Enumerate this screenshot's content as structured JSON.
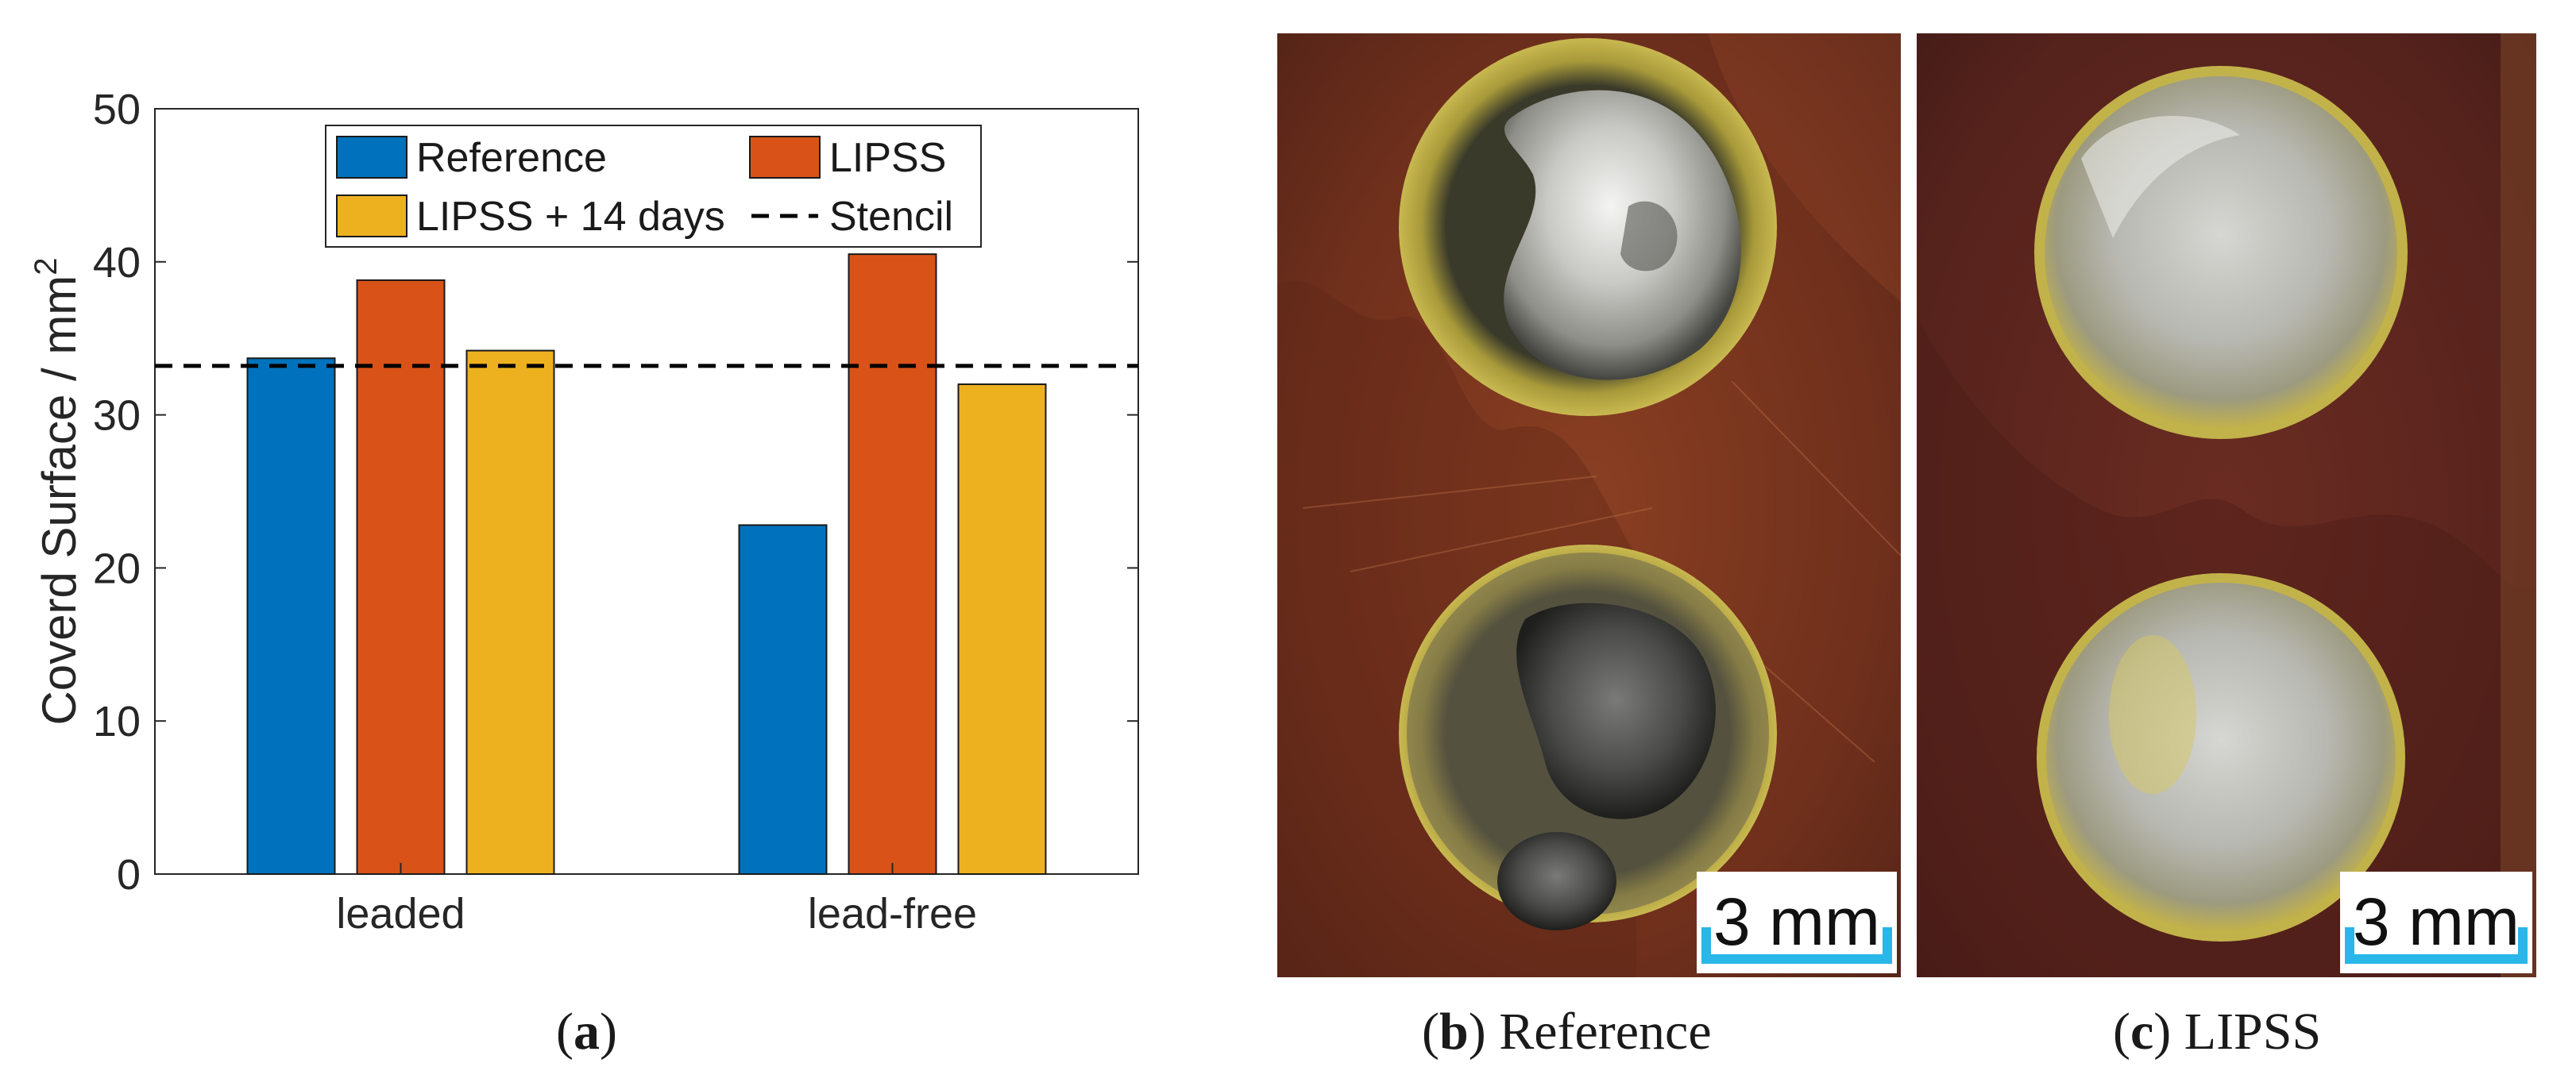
{
  "chart_data": {
    "type": "bar",
    "categories": [
      "leaded",
      "lead-free"
    ],
    "series": [
      {
        "name": "Reference",
        "values": [
          33.7,
          22.8
        ],
        "color": "#0072BD"
      },
      {
        "name": "LIPSS",
        "values": [
          38.8,
          40.5
        ],
        "color": "#D95319"
      },
      {
        "name": "LIPSS + 14 days",
        "values": [
          34.2,
          32.0
        ],
        "color": "#EDB120"
      }
    ],
    "reference_line": {
      "name": "Stencil",
      "value": 33.2,
      "style": "dashed",
      "color": "#000000"
    },
    "ylabel": "Coverd Surface / mm",
    "ylabel_superscript": "2",
    "xlabel": "",
    "ylim": [
      0,
      50
    ],
    "yticks": [
      0,
      10,
      20,
      30,
      40,
      50
    ],
    "grid": false,
    "legend_position": "top-center",
    "legend_columns": 2
  },
  "captions": {
    "a": {
      "letter": "a",
      "text": ""
    },
    "b": {
      "letter": "b",
      "text": "Reference"
    },
    "c": {
      "letter": "c",
      "text": "LIPSS"
    }
  },
  "photos": {
    "b": {
      "scale_bar": "3 mm",
      "scale_color": "#29B6E8"
    },
    "c": {
      "scale_bar": "3 mm",
      "scale_color": "#29B6E8"
    }
  }
}
